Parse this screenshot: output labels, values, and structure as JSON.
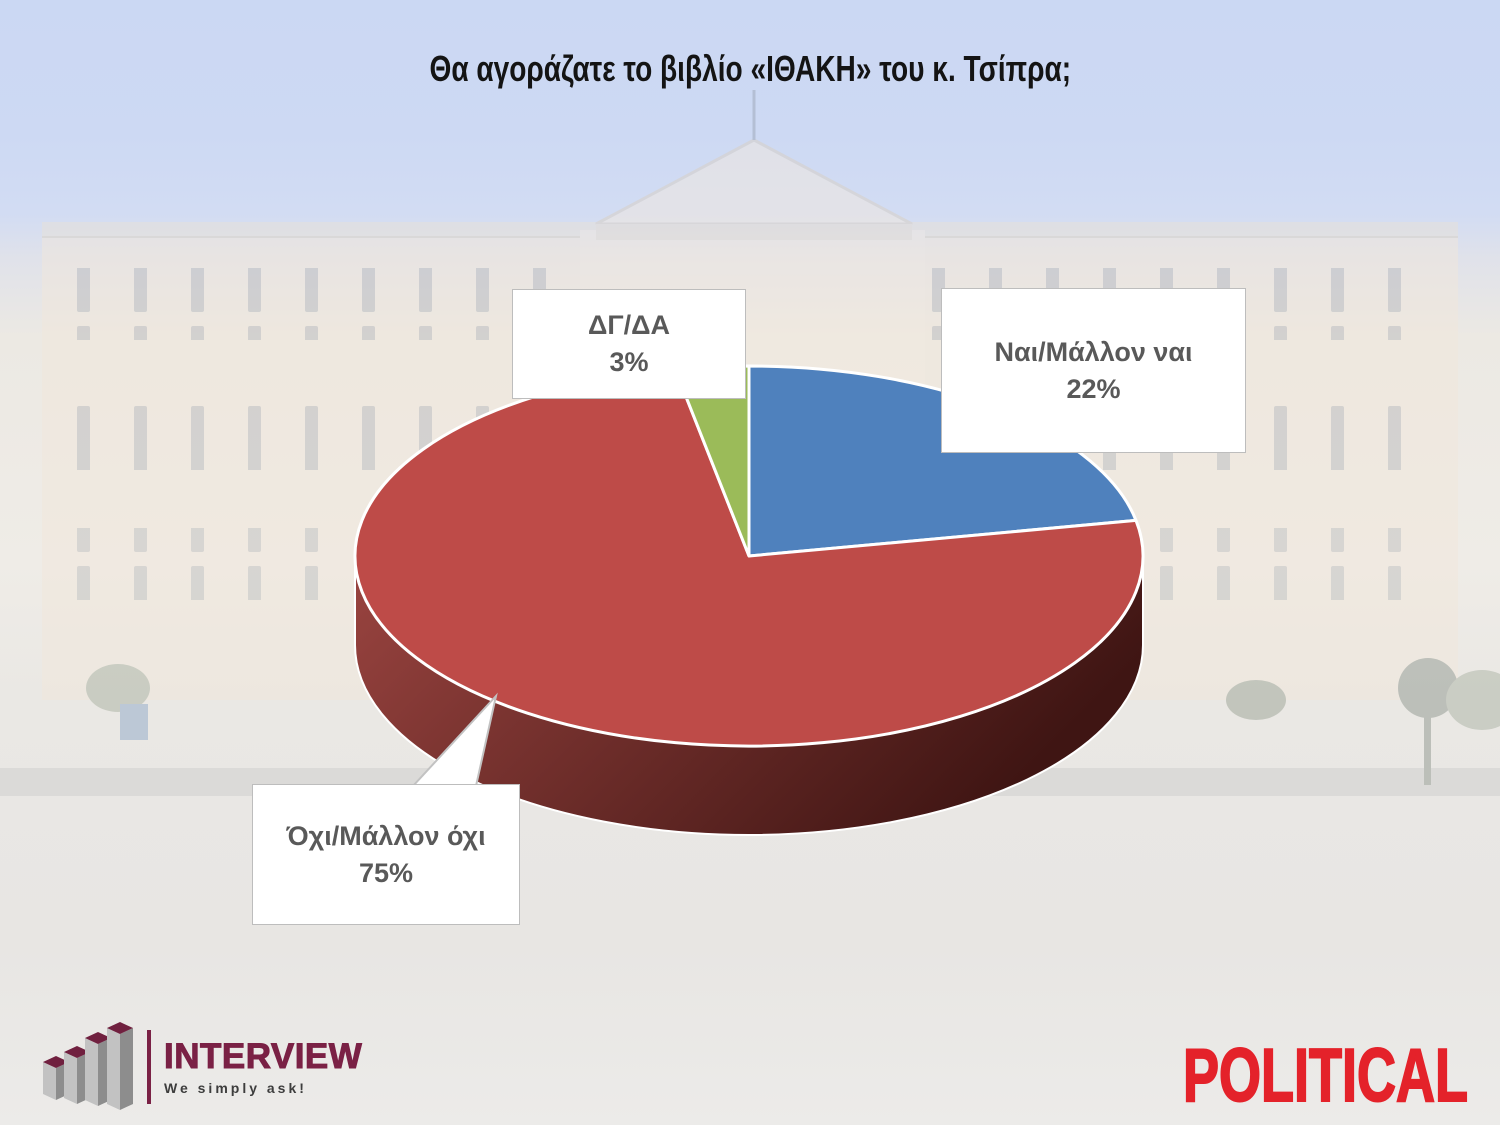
{
  "title": "Θα αγοράζατε το βιβλίο «ΙΘΑΚΗ» του κ. Τσίπρα;",
  "chart_data": {
    "type": "pie",
    "style": "3d",
    "title": "Θα αγοράζατε το βιβλίο «ΙΘΑΚΗ» του κ. Τσίπρα;",
    "start_angle_deg": 0,
    "direction": "clockwise",
    "legend": "none",
    "data_labels": "external callout boxes",
    "slices": [
      {
        "label": "Ναι/Μάλλον ναι",
        "value": 22,
        "pct_label": "22%",
        "color": "#4F81BD"
      },
      {
        "label": "Όχι/Μάλλον όχι",
        "value": 75,
        "pct_label": "75%",
        "color": "#BE4B48"
      },
      {
        "label": "ΔΓ/ΔΑ",
        "value": 3,
        "pct_label": "3%",
        "color": "#9BBB59"
      }
    ],
    "rim_gradient": [
      "#9A4440",
      "#3F1513"
    ],
    "slice_border_color": "#FFFFFF",
    "label_text_color": "#595959"
  },
  "branding": {
    "interview": {
      "name": "INTERVIEW",
      "tagline": "We simply ask!",
      "color": "#7A2145"
    },
    "political": {
      "name": "POLITICAL",
      "color": "#E4222A"
    }
  },
  "background_description": "Faded photo of the Hellenic Parliament building, Athens"
}
